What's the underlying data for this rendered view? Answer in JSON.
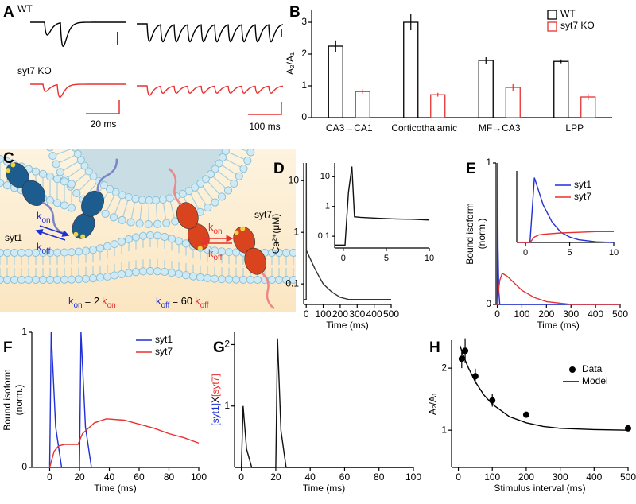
{
  "panel_labels": [
    "A",
    "B",
    "C",
    "D",
    "E",
    "F",
    "G",
    "H"
  ],
  "panel_a": {
    "wt": "WT",
    "ko": "syt7 KO",
    "scale_short": "20 ms",
    "scale_long": "100 ms"
  },
  "diagram": {
    "k": "k",
    "on": "on",
    "off": "off",
    "syt1": "syt1",
    "syt7": "syt7",
    "eq_on": "= 2",
    "eq_off": "= 60"
  },
  "chart_data": [
    {
      "type": "bar",
      "ylabel": "A₂/A₁",
      "categories": [
        "CA3→CA1",
        "Corticothalamic",
        "MF→CA3",
        "LPP"
      ],
      "series": [
        {
          "name": "WT",
          "color": "#000000",
          "values": [
            2.25,
            3.0,
            1.8,
            1.77
          ],
          "errors": [
            0.18,
            0.25,
            0.1,
            0.06
          ]
        },
        {
          "name": "syt7 KO",
          "color": "#e8302f",
          "values": [
            0.82,
            0.72,
            0.95,
            0.65
          ],
          "errors": [
            0.07,
            0.06,
            0.1,
            0.1
          ]
        }
      ],
      "ylim": [
        0,
        3.4
      ],
      "yticks": [
        0,
        1,
        2,
        3
      ],
      "legend": "upper right"
    },
    {
      "type": "line",
      "ylabel": "Ca²⁺(μM)",
      "xlabel": "Time (ms)",
      "ylog": true,
      "xlim": [
        -15,
        500
      ],
      "ylim": [
        0.04,
        22
      ],
      "xticks": [
        0,
        100,
        200,
        300,
        400,
        500
      ],
      "yticks": [
        0.1,
        1,
        10
      ],
      "series": [
        {
          "color": "#333333",
          "x": [
            -15,
            -1,
            0,
            0.5,
            1,
            2,
            25,
            50,
            75,
            100,
            150,
            200,
            250,
            300,
            400,
            500
          ],
          "values": [
            0.05,
            0.05,
            0.05,
            22,
            0.45,
            0.44,
            0.3,
            0.2,
            0.14,
            0.1,
            0.07,
            0.055,
            0.05,
            0.05,
            0.05,
            0.05
          ]
        }
      ]
    },
    {
      "type": "line",
      "ylog": true,
      "xlim": [
        -1,
        10
      ],
      "ylim": [
        0.04,
        29
      ],
      "xticks": [
        0,
        5,
        10
      ],
      "yticks": [
        0.1,
        1,
        10
      ],
      "series": [
        {
          "color": "#111111",
          "x": [
            -1,
            0.2,
            0.6,
            1,
            1.3,
            2,
            4,
            6,
            8,
            10
          ],
          "values": [
            0.05,
            0.05,
            3,
            22,
            0.45,
            0.43,
            0.4,
            0.38,
            0.37,
            0.35
          ]
        }
      ]
    },
    {
      "type": "line",
      "ylabel": [
        "Bound isoform",
        "(norm.)"
      ],
      "xlabel": "Time (ms)",
      "xlim": [
        -5,
        500
      ],
      "ylim": [
        0,
        1
      ],
      "xticks": [
        0,
        100,
        200,
        300,
        400,
        500
      ],
      "yticks": [
        0,
        1
      ],
      "legend": "upper right",
      "series": [
        {
          "name": "syt1",
          "color": "#1f2fd6",
          "x": [
            -5,
            0,
            1,
            3,
            6,
            10,
            500
          ],
          "values": [
            0,
            0,
            1,
            0.4,
            0.1,
            0,
            0
          ]
        },
        {
          "name": "syt7",
          "color": "#e8302f",
          "x": [
            -5,
            0,
            5,
            10,
            20,
            40,
            70,
            100,
            150,
            200,
            300,
            500
          ],
          "values": [
            0,
            0,
            0.1,
            0.17,
            0.22,
            0.2,
            0.15,
            0.1,
            0.05,
            0.02,
            0,
            0
          ]
        }
      ]
    },
    {
      "type": "line",
      "xlim": [
        -1,
        10
      ],
      "ylim": [
        0,
        1.05
      ],
      "xticks": [
        0,
        5,
        10
      ],
      "series": [
        {
          "color": "#1f2fd6",
          "x": [
            -1,
            0.5,
            1,
            1.5,
            2,
            3,
            4,
            5,
            6,
            8,
            10
          ],
          "values": [
            0,
            0,
            0.95,
            0.75,
            0.55,
            0.3,
            0.15,
            0.08,
            0.04,
            0.01,
            0
          ]
        },
        {
          "color": "#e8302f",
          "x": [
            -1,
            0.5,
            1,
            1.5,
            2,
            4,
            6,
            8,
            10
          ],
          "values": [
            0,
            0,
            0.08,
            0.11,
            0.12,
            0.14,
            0.15,
            0.16,
            0.16
          ]
        }
      ]
    },
    {
      "type": "line",
      "ylabel": [
        "Bound isoform",
        "(norm.)"
      ],
      "xlabel": "Time (ms)",
      "xlim": [
        -12,
        100
      ],
      "ylim": [
        0,
        1
      ],
      "xticks": [
        0,
        20,
        40,
        60,
        80,
        100
      ],
      "yticks": [
        0,
        1
      ],
      "legend": "upper right",
      "series": [
        {
          "name": "syt1",
          "color": "#1f2fd6",
          "x": [
            -12,
            0,
            1,
            4,
            8,
            19,
            20,
            21,
            24,
            28,
            100
          ],
          "values": [
            0,
            0,
            1,
            0.3,
            0,
            0,
            0,
            1,
            0.3,
            0,
            0
          ]
        },
        {
          "name": "syt7",
          "color": "#e8302f",
          "x": [
            -12,
            0,
            3,
            6,
            10,
            19,
            22,
            30,
            38,
            50,
            60,
            70,
            80,
            90,
            100
          ],
          "values": [
            0,
            0,
            0.12,
            0.16,
            0.17,
            0.17,
            0.25,
            0.33,
            0.36,
            0.35,
            0.32,
            0.29,
            0.25,
            0.22,
            0.18
          ]
        }
      ]
    },
    {
      "type": "line",
      "ylabel": [
        "[syt1]",
        "X",
        "[syt7]"
      ],
      "ylabel_colors": [
        "#1f2fd6",
        "#000000",
        "#e8302f"
      ],
      "xlabel": "Time (ms)",
      "xlim": [
        -4,
        100
      ],
      "ylim": [
        0,
        2.2
      ],
      "xticks": [
        0,
        20,
        40,
        60,
        80,
        100
      ],
      "yticks": [
        1,
        2
      ],
      "series": [
        {
          "color": "#111111",
          "x": [
            -4,
            0,
            1,
            3,
            6,
            19,
            20,
            21,
            23,
            26,
            100
          ],
          "values": [
            0,
            0,
            1,
            0.3,
            0,
            0,
            0,
            2.1,
            0.6,
            0,
            0
          ]
        }
      ]
    },
    {
      "type": "scatter",
      "ylabel": "A₂/A₁",
      "xlabel": "Stimulus interval (ms)",
      "xlim": [
        -20,
        500
      ],
      "ylim": [
        0.4,
        2.45
      ],
      "xticks": [
        0,
        100,
        200,
        300,
        400,
        500
      ],
      "yticks": [
        1,
        2
      ],
      "legend": "upper right",
      "series": [
        {
          "name": "Data",
          "type": "scatter",
          "color": "#000000",
          "x": [
            10,
            20,
            50,
            100,
            200,
            500
          ],
          "values": [
            2.15,
            2.28,
            1.87,
            1.48,
            1.25,
            1.03
          ],
          "errors": [
            0.15,
            0.2,
            0.12,
            0.1,
            0,
            0
          ]
        },
        {
          "name": "Model",
          "type": "line",
          "color": "#000000",
          "x": [
            5,
            10,
            20,
            30,
            50,
            75,
            100,
            150,
            200,
            250,
            300,
            400,
            500
          ],
          "values": [
            2.36,
            2.28,
            2.13,
            2.0,
            1.78,
            1.57,
            1.42,
            1.22,
            1.12,
            1.06,
            1.03,
            1.01,
            1.0
          ]
        }
      ]
    }
  ]
}
